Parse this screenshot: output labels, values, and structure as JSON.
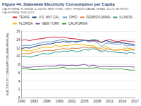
{
  "chart_data": {
    "type": "line",
    "title": "Figure 44. Statewide Electricity Consumption per Capita",
    "subtitle": "CALIFORNIA, FLORIDA, ILLINOIS, NEW YORK, OHIO, PENNSYLVANIA, TEXAS, & U.S. WITHOUT CALIFORNIA, 1990-2017",
    "y_label": "ELECTRICITY CONSUMPTION (MWh/PERSON)",
    "categories": [
      "1990",
      null,
      null,
      "1993",
      null,
      null,
      "1996",
      null,
      null,
      "1999",
      null,
      null,
      "2002",
      null,
      null,
      "2005",
      null,
      null,
      "2008",
      null,
      null,
      "2011",
      null,
      null,
      "2014",
      null,
      null,
      "2017"
    ],
    "series": [
      {
        "name": "TEXAS",
        "color": "#d7263d",
        "values": [
          13.8,
          13.9,
          13.7,
          14.0,
          14.1,
          14.2,
          14.4,
          14.5,
          14.6,
          14.4,
          14.6,
          14.3,
          14.2,
          14.1,
          14.0,
          13.8,
          13.6,
          13.7,
          13.6,
          13.3,
          13.7,
          14.0,
          13.6,
          13.5,
          13.7,
          13.6,
          13.5,
          13.4
        ]
      },
      {
        "name": "U.S. W/O CAL.",
        "color": "#1f3b73",
        "values": [
          11.8,
          12.0,
          11.9,
          12.3,
          12.5,
          12.7,
          12.9,
          12.9,
          13.2,
          13.3,
          13.5,
          13.3,
          13.5,
          13.5,
          13.6,
          13.8,
          13.7,
          13.9,
          13.8,
          13.2,
          13.7,
          13.5,
          13.2,
          13.2,
          13.2,
          13.0,
          12.9,
          12.7
        ]
      },
      {
        "name": "OHIO",
        "color": "#5b9bd5",
        "values": [
          12.4,
          12.6,
          12.5,
          12.8,
          13.0,
          13.3,
          13.4,
          13.4,
          13.6,
          13.8,
          14.0,
          13.5,
          13.6,
          13.3,
          13.5,
          13.8,
          13.4,
          13.6,
          13.3,
          12.2,
          13.1,
          13.1,
          12.9,
          12.8,
          13.0,
          12.4,
          12.6,
          12.4
        ]
      },
      {
        "name": "PENNSYLVANIA",
        "color": "#e07b39",
        "values": [
          10.5,
          10.6,
          10.6,
          10.9,
          11.0,
          11.2,
          11.4,
          11.3,
          11.4,
          11.6,
          11.8,
          11.6,
          11.9,
          11.8,
          11.9,
          12.2,
          11.9,
          12.1,
          11.8,
          11.3,
          11.8,
          11.6,
          11.4,
          11.6,
          11.5,
          11.3,
          11.5,
          11.4
        ]
      },
      {
        "name": "ILLINOIS",
        "color": "#2a9d8f",
        "values": [
          9.9,
          10.0,
          9.7,
          10.0,
          10.2,
          10.6,
          10.5,
          10.6,
          11.0,
          10.9,
          11.2,
          11.1,
          11.4,
          11.0,
          11.2,
          11.6,
          11.4,
          11.8,
          11.5,
          11.0,
          11.3,
          11.0,
          11.0,
          10.8,
          10.8,
          10.6,
          10.9,
          10.6
        ]
      },
      {
        "name": "FLORIDA",
        "color": "#f2b705",
        "values": [
          11.4,
          11.3,
          11.2,
          11.5,
          11.7,
          12.1,
          12.2,
          12.0,
          12.6,
          12.3,
          12.5,
          12.5,
          12.8,
          12.9,
          12.7,
          12.7,
          12.5,
          12.5,
          12.0,
          11.8,
          12.4,
          11.8,
          11.4,
          11.4,
          11.6,
          11.9,
          11.8,
          11.5
        ]
      },
      {
        "name": "NEW YORK",
        "color": "#7b4fa0",
        "values": [
          7.4,
          7.3,
          7.3,
          7.4,
          7.4,
          7.5,
          7.6,
          7.6,
          7.6,
          7.8,
          7.8,
          7.7,
          7.8,
          7.7,
          7.8,
          8.0,
          7.6,
          7.8,
          7.6,
          7.4,
          7.5,
          7.4,
          7.4,
          7.4,
          7.4,
          7.4,
          7.4,
          7.3
        ]
      },
      {
        "name": "CALIFORNIA",
        "color": "#3a9d3a",
        "values": [
          7.0,
          6.9,
          6.8,
          6.7,
          6.8,
          6.8,
          6.9,
          7.0,
          7.1,
          7.1,
          7.3,
          6.9,
          6.9,
          7.0,
          7.1,
          7.0,
          7.1,
          7.1,
          7.2,
          7.0,
          6.9,
          6.8,
          6.9,
          6.9,
          6.9,
          6.7,
          6.6,
          6.6
        ]
      }
    ],
    "ylim": [
      0,
      16
    ],
    "yticks": [
      0,
      2,
      4,
      6,
      8,
      10,
      12,
      14,
      16
    ],
    "grid": true,
    "legend": "top"
  }
}
